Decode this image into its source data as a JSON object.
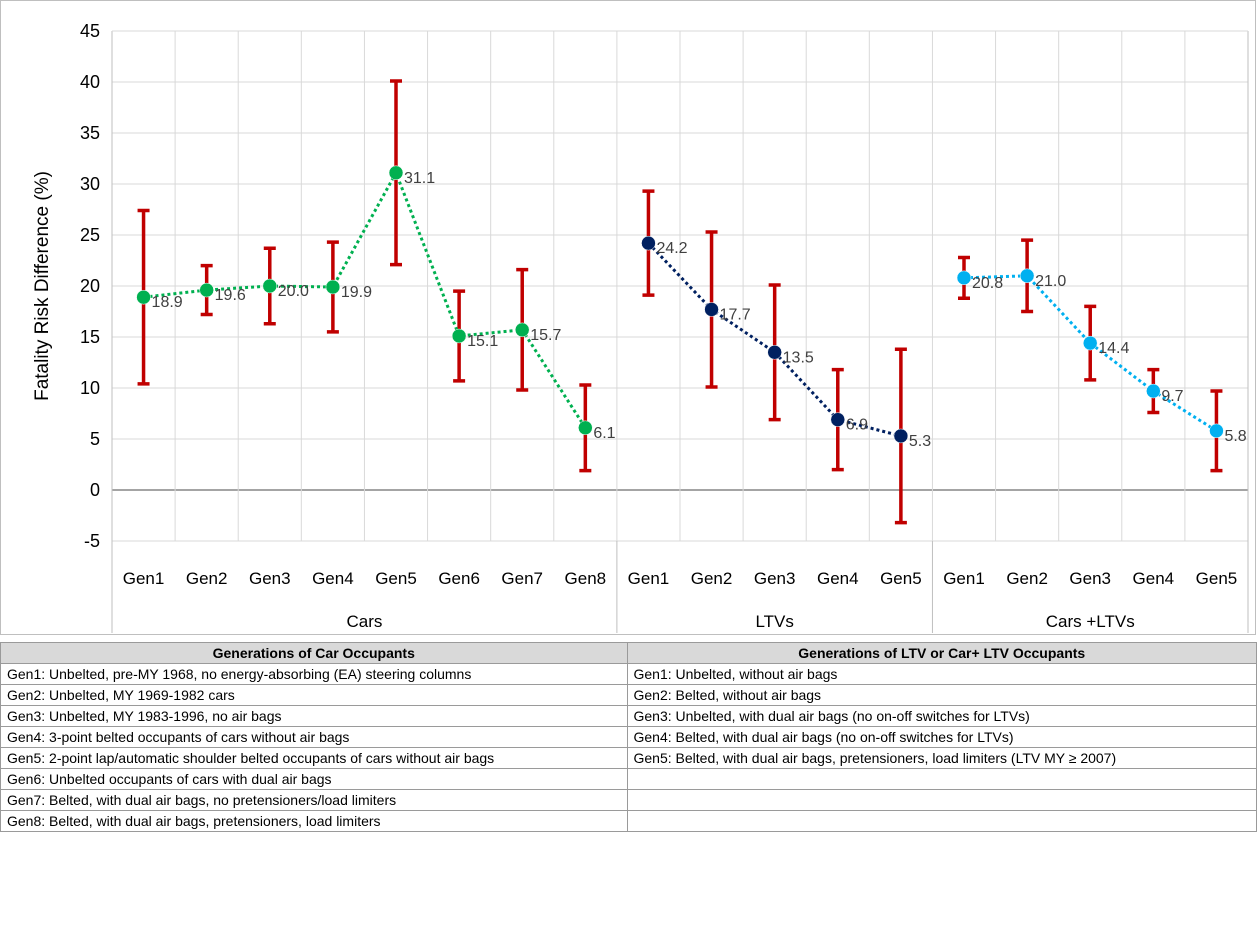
{
  "chart_data": {
    "type": "line",
    "ylabel": "Fatality Risk Difference (%)",
    "ylim": [
      -5,
      45
    ],
    "yticks": [
      -5,
      0,
      5,
      10,
      15,
      20,
      25,
      30,
      35,
      40,
      45
    ],
    "grid": true,
    "error_color": "#c00000",
    "series": [
      {
        "name": "Cars",
        "color": "#00b050",
        "categories": [
          "Gen1",
          "Gen2",
          "Gen3",
          "Gen4",
          "Gen5",
          "Gen6",
          "Gen7",
          "Gen8"
        ],
        "values": [
          18.9,
          19.6,
          20.0,
          19.9,
          31.1,
          15.1,
          15.7,
          6.1
        ],
        "value_labels": [
          "18.9",
          "19.6",
          "20.0",
          "19.9",
          "31.1",
          "15.1",
          "15.7",
          "6.1"
        ],
        "errors": [
          8.5,
          2.4,
          3.7,
          4.4,
          9.0,
          4.4,
          5.9,
          4.2
        ]
      },
      {
        "name": "LTVs",
        "color": "#002060",
        "categories": [
          "Gen1",
          "Gen2",
          "Gen3",
          "Gen4",
          "Gen5"
        ],
        "values": [
          24.2,
          17.7,
          13.5,
          6.9,
          5.3
        ],
        "value_labels": [
          "24.2",
          "17.7",
          "13.5",
          "6.9",
          "5.3"
        ],
        "errors": [
          5.1,
          7.6,
          6.6,
          4.9,
          8.5
        ]
      },
      {
        "name": "Cars +LTVs",
        "color": "#00b0f0",
        "categories": [
          "Gen1",
          "Gen2",
          "Gen3",
          "Gen4",
          "Gen5"
        ],
        "values": [
          20.8,
          21.0,
          14.4,
          9.7,
          5.8
        ],
        "value_labels": [
          "20.8",
          "21.0",
          "14.4",
          "9.7",
          "5.8"
        ],
        "errors": [
          2.0,
          3.5,
          3.6,
          2.1,
          3.9
        ]
      }
    ]
  },
  "table": {
    "headers": [
      "Generations of Car Occupants",
      "Generations of LTV or Car+ LTV Occupants"
    ],
    "rows": [
      [
        "Gen1: Unbelted, pre-MY 1968, no energy-absorbing (EA) steering columns",
        "Gen1: Unbelted, without air bags"
      ],
      [
        "Gen2: Unbelted, MY 1969-1982 cars",
        "Gen2: Belted, without air bags"
      ],
      [
        "Gen3: Unbelted, MY 1983-1996, no air bags",
        "Gen3: Unbelted, with dual air bags (no on-off switches for LTVs)"
      ],
      [
        "Gen4: 3-point belted occupants of cars without air bags",
        "Gen4: Belted, with dual air bags (no on-off switches for LTVs)"
      ],
      [
        "Gen5: 2-point lap/automatic shoulder belted occupants of cars without air bags",
        "Gen5: Belted, with dual air bags, pretensioners, load limiters (LTV MY ≥ 2007)"
      ],
      [
        "Gen6: Unbelted occupants of cars with dual air bags",
        null
      ],
      [
        "Gen7: Belted, with dual air bags, no pretensioners/load limiters",
        null
      ],
      [
        "Gen8: Belted, with dual air bags, pretensioners, load limiters",
        null
      ]
    ]
  }
}
